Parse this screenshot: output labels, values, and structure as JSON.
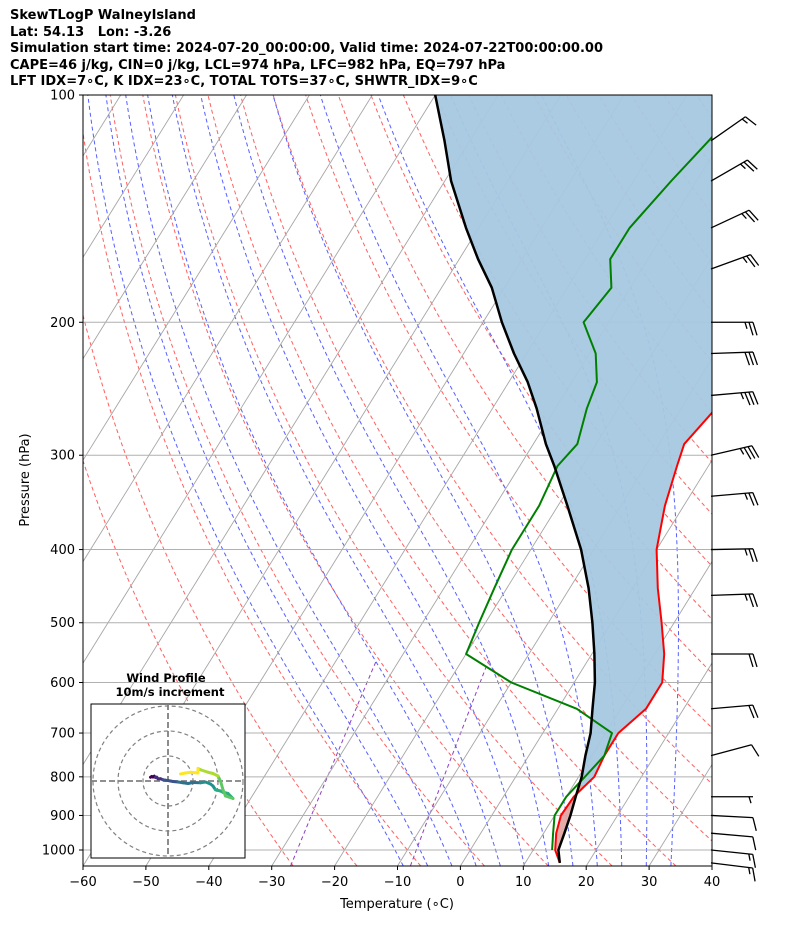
{
  "header": {
    "line1": "SkewTLogP WalneyIsland",
    "line2": "Lat: 54.13   Lon: -3.26",
    "line3": "Simulation start time: 2024-07-20_00:00:00, Valid time: 2024-07-22T00:00:00.00",
    "line4": "CAPE=46 j/kg, CIN=0 j/kg, LCL=974 hPa, LFC=982 hPa, EQ=797 hPa",
    "line5": "LFT IDX=7∘C, K IDX=23∘C, TOTAL TOTS=37∘C, SHWTR_IDX=9∘C"
  },
  "chart_data": [
    {
      "type": "line",
      "xlabel": "Temperature (∘C)",
      "ylabel": "Pressure (hPa)",
      "x_ticks": [
        -60,
        -50,
        -40,
        -30,
        -20,
        -10,
        0,
        10,
        20,
        30,
        40
      ],
      "y_ticks": [
        100,
        200,
        300,
        400,
        500,
        600,
        700,
        800,
        900,
        1000
      ],
      "xlim": [
        -60,
        40
      ],
      "ylim": [
        1050,
        100
      ],
      "y_scale": "log",
      "skew": "skewed-T",
      "grid": true,
      "colors": {
        "temperature": "#ff0000",
        "dewpoint": "#008000",
        "parcel": "#000000",
        "cape_fill": "#a6c8e0",
        "cin_fill": "#e3a7a7",
        "dry_adiabats": "#ff6060",
        "moist_adiabats": "#5560ff",
        "mixing_ratio": "#9040c0",
        "isotherms": "#a6a6a6"
      },
      "series": [
        {
          "key": "temperature",
          "points": [
            [
              15.5,
              1040
            ],
            [
              13.5,
              1000
            ],
            [
              12,
              950
            ],
            [
              11,
              900
            ],
            [
              11.2,
              850
            ],
            [
              12.5,
              800
            ],
            [
              12,
              750
            ],
            [
              12,
              700
            ],
            [
              14,
              650
            ],
            [
              14,
              600
            ],
            [
              11.5,
              550
            ],
            [
              8,
              500
            ],
            [
              4,
              450
            ],
            [
              0,
              400
            ],
            [
              -3,
              350
            ],
            [
              -5,
              310
            ],
            [
              -6,
              290
            ],
            [
              -4.5,
              260
            ],
            [
              -2,
              240
            ],
            [
              1.5,
              220
            ],
            [
              4.5,
              200
            ],
            [
              7,
              180
            ],
            [
              8,
              160
            ],
            [
              8.5,
              140
            ],
            [
              9,
              130
            ],
            [
              11,
              120
            ],
            [
              13,
              112
            ],
            [
              15,
              106
            ],
            [
              16.5,
              100
            ]
          ]
        },
        {
          "key": "dewpoint",
          "points": [
            [
              13,
              1000
            ],
            [
              11.5,
              950
            ],
            [
              10,
              900
            ],
            [
              10,
              850
            ],
            [
              11,
              800
            ],
            [
              12,
              750
            ],
            [
              11,
              700
            ],
            [
              3,
              650
            ],
            [
              -10,
              600
            ],
            [
              -20,
              550
            ],
            [
              -21,
              500
            ],
            [
              -22,
              450
            ],
            [
              -23,
              400
            ],
            [
              -23,
              350
            ],
            [
              -24,
              310
            ],
            [
              -23,
              290
            ],
            [
              -25,
              260
            ],
            [
              -26,
              240
            ],
            [
              -29,
              220
            ],
            [
              -34,
              200
            ],
            [
              -33,
              180
            ],
            [
              -36,
              165
            ],
            [
              -36,
              150
            ],
            [
              -34,
              130
            ],
            [
              -32,
              115
            ],
            [
              -30,
              100
            ]
          ]
        },
        {
          "key": "parcel",
          "points": [
            [
              15.5,
              1040
            ],
            [
              14,
              1000
            ],
            [
              13.3,
              950
            ],
            [
              12.5,
              900
            ],
            [
              11.5,
              850
            ],
            [
              10.5,
              800
            ],
            [
              9,
              750
            ],
            [
              7.6,
              700
            ],
            [
              5.5,
              650
            ],
            [
              3.3,
              600
            ],
            [
              0.4,
              550
            ],
            [
              -3,
              500
            ],
            [
              -7,
              450
            ],
            [
              -12,
              400
            ],
            [
              -18.5,
              350
            ],
            [
              -24.5,
              310
            ],
            [
              -28,
              290
            ],
            [
              -33,
              260
            ],
            [
              -37,
              240
            ],
            [
              -42,
              220
            ],
            [
              -47,
              200
            ],
            [
              -52,
              180
            ],
            [
              -57,
              165
            ],
            [
              -62,
              150
            ],
            [
              -69,
              130
            ],
            [
              -74,
              115
            ],
            [
              -80,
              100
            ]
          ]
        }
      ],
      "wind_barbs": [
        {
          "p": 1040,
          "speed_kt": 15,
          "dir_deg": 263
        },
        {
          "p": 1000,
          "speed_kt": 15,
          "dir_deg": 264
        },
        {
          "p": 950,
          "speed_kt": 10,
          "dir_deg": 265
        },
        {
          "p": 900,
          "speed_kt": 10,
          "dir_deg": 267
        },
        {
          "p": 850,
          "speed_kt": 5,
          "dir_deg": 270
        },
        {
          "p": 750,
          "speed_kt": 10,
          "dir_deg": 285
        },
        {
          "p": 650,
          "speed_kt": 20,
          "dir_deg": 275
        },
        {
          "p": 550,
          "speed_kt": 20,
          "dir_deg": 270
        },
        {
          "p": 460,
          "speed_kt": 25,
          "dir_deg": 272
        },
        {
          "p": 400,
          "speed_kt": 25,
          "dir_deg": 271
        },
        {
          "p": 340,
          "speed_kt": 25,
          "dir_deg": 275
        },
        {
          "p": 300,
          "speed_kt": 35,
          "dir_deg": 283
        },
        {
          "p": 250,
          "speed_kt": 35,
          "dir_deg": 275
        },
        {
          "p": 220,
          "speed_kt": 30,
          "dir_deg": 272
        },
        {
          "p": 200,
          "speed_kt": 25,
          "dir_deg": 270
        },
        {
          "p": 170,
          "speed_kt": 25,
          "dir_deg": 290
        },
        {
          "p": 150,
          "speed_kt": 25,
          "dir_deg": 295
        },
        {
          "p": 130,
          "speed_kt": 25,
          "dir_deg": 300
        },
        {
          "p": 115,
          "speed_kt": 15,
          "dir_deg": 305
        }
      ]
    },
    {
      "type": "line",
      "title": "Wind Profile",
      "subtitle": "10m/s increment",
      "rings_mps": [
        10,
        20,
        30
      ],
      "colormap": "viridis",
      "points": [
        [
          -7,
          1.5
        ],
        [
          -6.5,
          1.8
        ],
        [
          -6,
          1.6
        ],
        [
          -5.5,
          1.9
        ],
        [
          -5,
          1.4
        ],
        [
          -4.5,
          1.5
        ],
        [
          -4,
          0.9
        ],
        [
          -3,
          0.9
        ],
        [
          -2,
          0.5
        ],
        [
          -1,
          0.3
        ],
        [
          0,
          0.2
        ],
        [
          2,
          -0.2
        ],
        [
          4,
          -0.4
        ],
        [
          6,
          -0.7
        ],
        [
          8,
          -1.0
        ],
        [
          10,
          -0.6
        ],
        [
          13,
          -0.7
        ],
        [
          15,
          -0.4
        ],
        [
          17,
          -1.2
        ],
        [
          18,
          -2
        ],
        [
          19,
          -3.5
        ],
        [
          21,
          -4
        ],
        [
          22,
          -4.5
        ],
        [
          24,
          -5
        ],
        [
          26,
          -7
        ],
        [
          23,
          -6
        ],
        [
          22,
          -3.5
        ],
        [
          21,
          0
        ],
        [
          20,
          2
        ],
        [
          18,
          3
        ],
        [
          16,
          3.5
        ],
        [
          13,
          4.5
        ],
        [
          12,
          5
        ],
        [
          12,
          3.2
        ],
        [
          9,
          3.5
        ],
        [
          7,
          3.2
        ],
        [
          5,
          2.8
        ]
      ]
    }
  ]
}
